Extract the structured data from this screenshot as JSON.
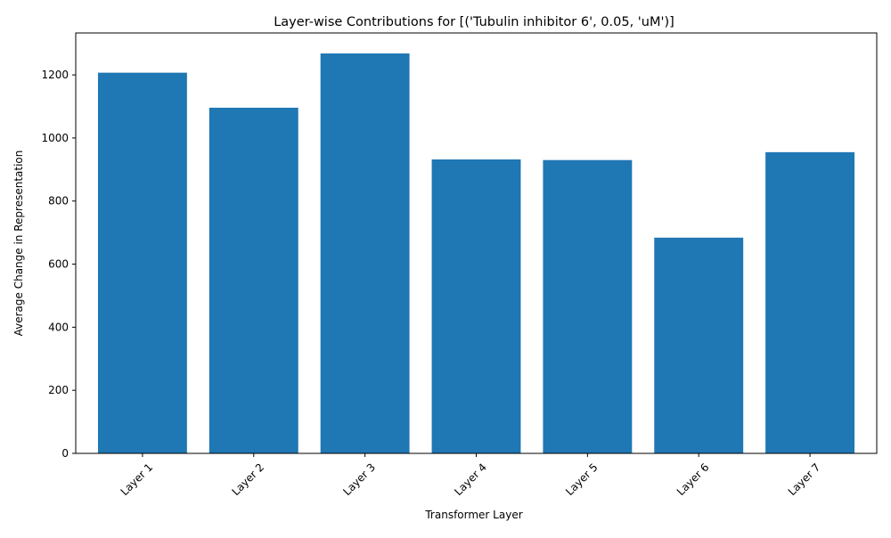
{
  "chart_data": {
    "type": "bar",
    "title": "Layer-wise Contributions for [('Tubulin inhibitor 6', 0.05, 'uM')]",
    "xlabel": "Transformer Layer",
    "ylabel": "Average Change in Representation",
    "categories": [
      "Layer 1",
      "Layer 2",
      "Layer 3",
      "Layer 4",
      "Layer 5",
      "Layer 6",
      "Layer 7"
    ],
    "values": [
      1207,
      1096,
      1268,
      932,
      930,
      684,
      955
    ],
    "ylim": [
      0,
      1333
    ],
    "yticks": [
      0,
      200,
      400,
      600,
      800,
      1000,
      1200
    ],
    "bar_color": "#1f77b4",
    "grid": false,
    "legend": "none",
    "xtick_rotation": 45
  }
}
